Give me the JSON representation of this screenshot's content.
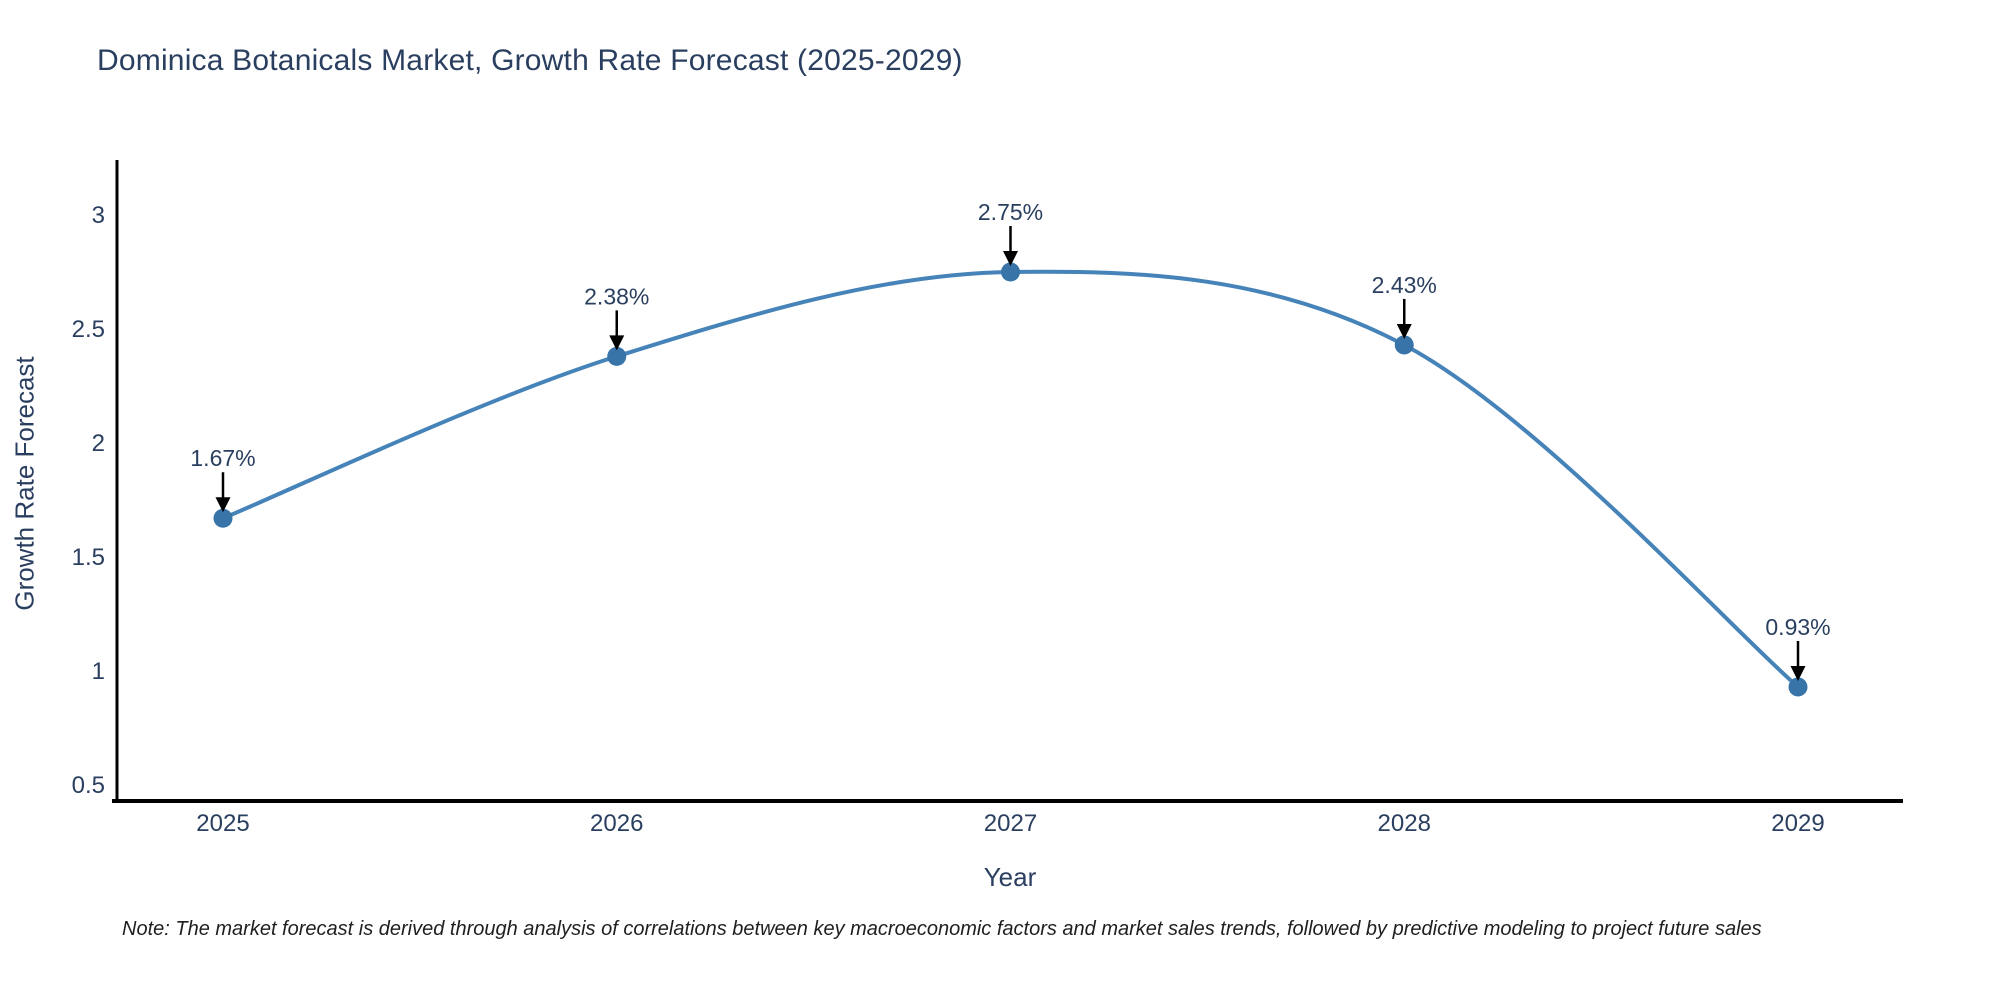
{
  "note": "Note: The market forecast is derived through analysis of correlations between key macroeconomic factors and market sales trends, followed by predictive modeling to project future sales",
  "chart_data": {
    "type": "line",
    "title": "Dominica Botanicals Market, Growth Rate Forecast (2025-2029)",
    "xlabel": "Year",
    "ylabel": "Growth Rate Forecast",
    "categories": [
      "2025",
      "2026",
      "2027",
      "2028",
      "2029"
    ],
    "values": [
      1.67,
      2.38,
      2.75,
      2.43,
      0.93
    ],
    "point_labels": [
      "1.67%",
      "2.38%",
      "2.75%",
      "2.43%",
      "0.93%"
    ],
    "yticks": [
      0.5,
      1,
      1.5,
      2,
      2.5,
      3
    ],
    "ylim": [
      0.5,
      3.25
    ],
    "line_shape": "spline",
    "grid": false,
    "legend": "none",
    "annotations": "value labels with black arrows pointing to each marker",
    "colors": {
      "line": "#4583b8",
      "marker": "#3874a8",
      "axis": "#000000",
      "text": "#2a3f5f",
      "arrow": "#000000",
      "background": "#ffffff"
    }
  }
}
